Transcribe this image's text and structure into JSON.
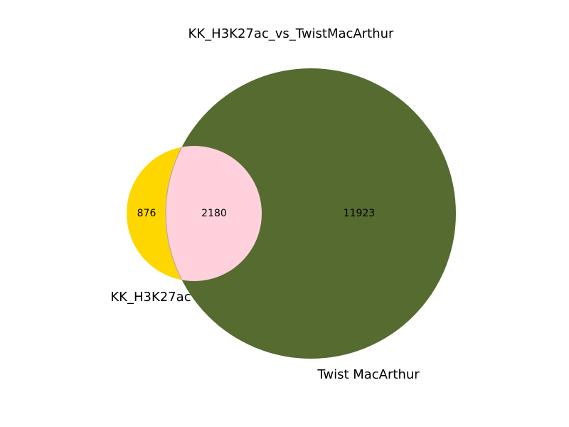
{
  "title": "KK_H3K27ac_vs_TwistMacArthur",
  "sets": [
    {
      "name": "KK_H3K27ac",
      "color": "#ffd700"
    },
    {
      "name": "Twist MacArthur",
      "color": "#556b2f"
    }
  ],
  "regions": {
    "only_a": "876",
    "overlap": "2180",
    "only_b": "11923"
  },
  "overlap_color": "#ffd1dc"
}
